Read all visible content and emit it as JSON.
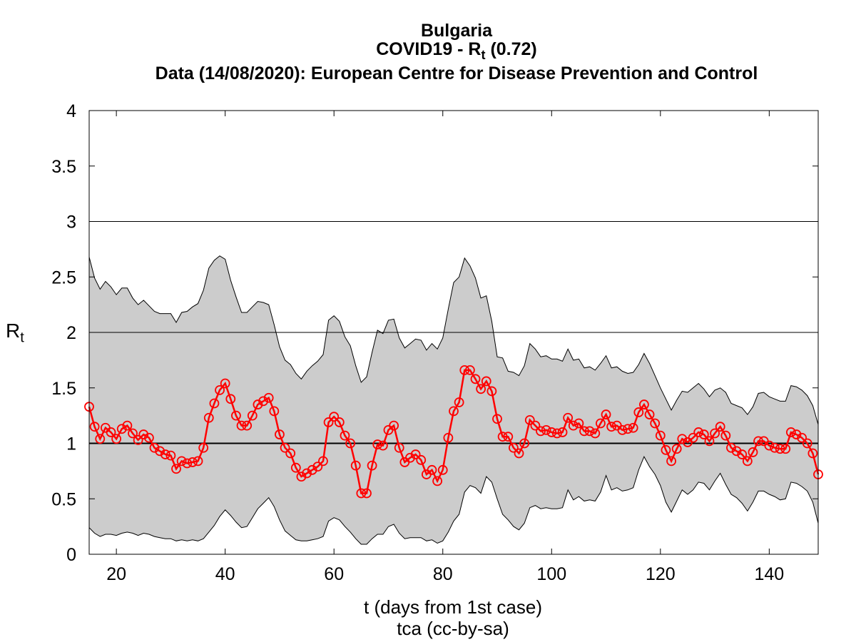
{
  "title": {
    "country": "Bulgaria",
    "rt_prefix": "COVID19 - R",
    "rt_sub": "t",
    "rt_suffix": " (0.72)",
    "source": "Data (14/08/2020): European Centre for Disease Prevention and Control"
  },
  "chart_data": {
    "type": "line",
    "xlabel": "t (days from 1st case)",
    "ylabel_main": "R",
    "ylabel_sub": "t",
    "credit": "tca (cc-by-sa)",
    "xlim": [
      15,
      149
    ],
    "ylim": [
      0,
      4
    ],
    "x_ticks": [
      "20",
      "40",
      "60",
      "80",
      "100",
      "120",
      "140"
    ],
    "y_ticks": [
      "0",
      "0.5",
      "1",
      "1.5",
      "2",
      "2.5",
      "3",
      "3.5",
      "4"
    ],
    "reference_lines": [
      1,
      2,
      3
    ],
    "colors": {
      "series": "#ff0000",
      "band": "#cccccc",
      "axis": "#000000"
    },
    "x": [
      15,
      16,
      17,
      18,
      19,
      20,
      21,
      22,
      23,
      24,
      25,
      26,
      27,
      28,
      29,
      30,
      31,
      32,
      33,
      34,
      35,
      36,
      37,
      38,
      39,
      40,
      41,
      42,
      43,
      44,
      45,
      46,
      47,
      48,
      49,
      50,
      51,
      52,
      53,
      54,
      55,
      56,
      57,
      58,
      59,
      60,
      61,
      62,
      63,
      64,
      65,
      66,
      67,
      68,
      69,
      70,
      71,
      72,
      73,
      74,
      75,
      76,
      77,
      78,
      79,
      80,
      81,
      82,
      83,
      84,
      85,
      86,
      87,
      88,
      89,
      90,
      91,
      92,
      93,
      94,
      95,
      96,
      97,
      98,
      99,
      100,
      101,
      102,
      103,
      104,
      105,
      106,
      107,
      108,
      109,
      110,
      111,
      112,
      113,
      114,
      115,
      116,
      117,
      118,
      119,
      120,
      121,
      122,
      123,
      124,
      125,
      126,
      127,
      128,
      129,
      130,
      131,
      132,
      133,
      134,
      135,
      136,
      137,
      138,
      139,
      140,
      141,
      142,
      143,
      144,
      145,
      146,
      147,
      148,
      149
    ],
    "series": [
      {
        "values": [
          1.33,
          1.15,
          1.04,
          1.14,
          1.1,
          1.04,
          1.13,
          1.16,
          1.09,
          1.03,
          1.08,
          1.05,
          0.96,
          0.93,
          0.9,
          0.89,
          0.77,
          0.84,
          0.82,
          0.83,
          0.84,
          0.96,
          1.23,
          1.36,
          1.48,
          1.54,
          1.4,
          1.25,
          1.16,
          1.16,
          1.25,
          1.35,
          1.38,
          1.41,
          1.29,
          1.08,
          0.96,
          0.91,
          0.78,
          0.7,
          0.73,
          0.76,
          0.79,
          0.84,
          1.19,
          1.24,
          1.19,
          1.07,
          1.0,
          0.8,
          0.55,
          0.55,
          0.8,
          0.99,
          0.98,
          1.12,
          1.16,
          0.96,
          0.83,
          0.87,
          0.9,
          0.85,
          0.72,
          0.76,
          0.66,
          0.76,
          1.05,
          1.29,
          1.37,
          1.66,
          1.66,
          1.58,
          1.49,
          1.56,
          1.47,
          1.22,
          1.06,
          1.06,
          0.96,
          0.91,
          1.0,
          1.21,
          1.16,
          1.11,
          1.12,
          1.1,
          1.09,
          1.1,
          1.23,
          1.16,
          1.18,
          1.11,
          1.11,
          1.09,
          1.18,
          1.26,
          1.15,
          1.16,
          1.12,
          1.13,
          1.14,
          1.28,
          1.35,
          1.26,
          1.18,
          1.07,
          0.94,
          0.84,
          0.95,
          1.04,
          1.01,
          1.05,
          1.1,
          1.08,
          1.02,
          1.09,
          1.15,
          1.07,
          0.96,
          0.93,
          0.9,
          0.84,
          0.92,
          1.02,
          1.02,
          0.98,
          0.96,
          0.95,
          0.95,
          1.1,
          1.08,
          1.05,
          1.0,
          0.91,
          0.72
        ]
      }
    ],
    "band_upper": [
      2.68,
      2.49,
      2.39,
      2.46,
      2.41,
      2.34,
      2.4,
      2.4,
      2.31,
      2.25,
      2.29,
      2.24,
      2.19,
      2.17,
      2.17,
      2.17,
      2.09,
      2.18,
      2.19,
      2.23,
      2.26,
      2.38,
      2.58,
      2.65,
      2.69,
      2.66,
      2.47,
      2.32,
      2.18,
      2.18,
      2.23,
      2.28,
      2.27,
      2.25,
      2.07,
      1.87,
      1.75,
      1.71,
      1.63,
      1.58,
      1.65,
      1.7,
      1.74,
      1.8,
      2.11,
      2.15,
      2.1,
      1.96,
      1.88,
      1.7,
      1.55,
      1.6,
      1.82,
      2.02,
      1.99,
      2.11,
      2.12,
      1.95,
      1.86,
      1.9,
      1.94,
      1.93,
      1.84,
      1.9,
      1.85,
      1.95,
      2.21,
      2.45,
      2.5,
      2.67,
      2.6,
      2.49,
      2.31,
      2.33,
      2.1,
      1.78,
      1.77,
      1.65,
      1.64,
      1.61,
      1.7,
      1.9,
      1.85,
      1.78,
      1.79,
      1.76,
      1.76,
      1.74,
      1.85,
      1.75,
      1.76,
      1.68,
      1.69,
      1.66,
      1.72,
      1.79,
      1.68,
      1.69,
      1.65,
      1.63,
      1.64,
      1.71,
      1.81,
      1.72,
      1.61,
      1.5,
      1.4,
      1.3,
      1.39,
      1.47,
      1.46,
      1.5,
      1.54,
      1.49,
      1.42,
      1.48,
      1.5,
      1.46,
      1.36,
      1.34,
      1.32,
      1.26,
      1.33,
      1.45,
      1.46,
      1.42,
      1.4,
      1.38,
      1.38,
      1.52,
      1.51,
      1.48,
      1.43,
      1.34,
      1.17
    ],
    "band_lower": [
      0.24,
      0.19,
      0.16,
      0.18,
      0.18,
      0.17,
      0.19,
      0.2,
      0.19,
      0.17,
      0.19,
      0.18,
      0.16,
      0.15,
      0.14,
      0.14,
      0.12,
      0.13,
      0.12,
      0.13,
      0.12,
      0.14,
      0.2,
      0.26,
      0.34,
      0.4,
      0.35,
      0.29,
      0.24,
      0.25,
      0.33,
      0.41,
      0.46,
      0.51,
      0.43,
      0.31,
      0.21,
      0.17,
      0.13,
      0.12,
      0.12,
      0.13,
      0.14,
      0.16,
      0.3,
      0.33,
      0.31,
      0.25,
      0.2,
      0.14,
      0.09,
      0.09,
      0.14,
      0.18,
      0.18,
      0.25,
      0.27,
      0.19,
      0.14,
      0.15,
      0.15,
      0.15,
      0.12,
      0.13,
      0.1,
      0.12,
      0.2,
      0.3,
      0.36,
      0.56,
      0.62,
      0.6,
      0.55,
      0.7,
      0.65,
      0.5,
      0.36,
      0.31,
      0.25,
      0.22,
      0.28,
      0.42,
      0.44,
      0.41,
      0.42,
      0.41,
      0.41,
      0.42,
      0.58,
      0.49,
      0.52,
      0.48,
      0.49,
      0.48,
      0.56,
      0.71,
      0.58,
      0.6,
      0.57,
      0.58,
      0.6,
      0.76,
      0.88,
      0.79,
      0.72,
      0.62,
      0.47,
      0.38,
      0.48,
      0.58,
      0.54,
      0.58,
      0.65,
      0.64,
      0.58,
      0.66,
      0.73,
      0.63,
      0.54,
      0.51,
      0.46,
      0.39,
      0.47,
      0.57,
      0.57,
      0.54,
      0.52,
      0.49,
      0.5,
      0.65,
      0.64,
      0.61,
      0.57,
      0.47,
      0.28
    ]
  }
}
